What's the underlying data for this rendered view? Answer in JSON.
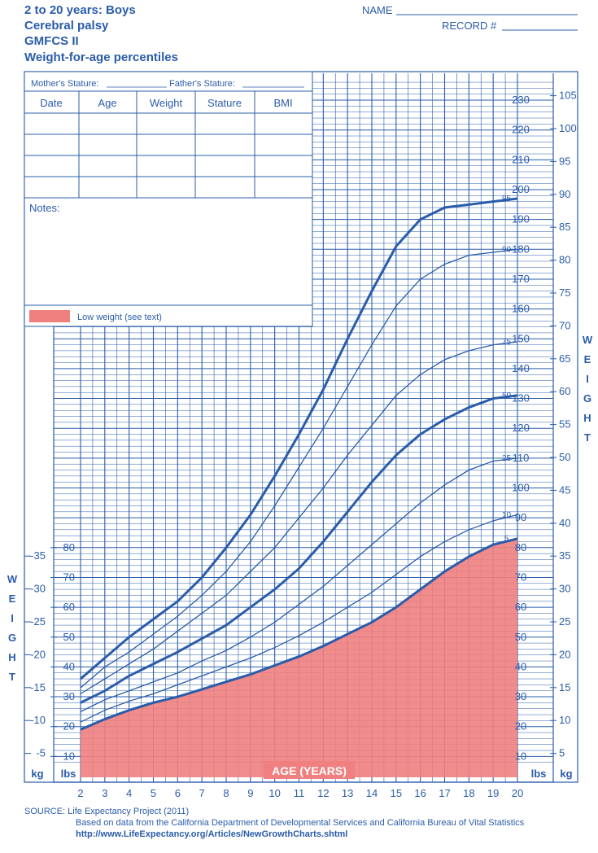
{
  "header": {
    "title_lines": [
      "2 to 20 years: Boys",
      "Cerebral palsy",
      "GMFCS II",
      "Weight-for-age percentiles"
    ],
    "name_label": "NAME",
    "record_label": "RECORD #"
  },
  "record_table": {
    "mother_stature": "Mother's Stature:",
    "father_stature": "Father's Stature:",
    "columns": [
      "Date",
      "Age",
      "Weight",
      "Stature",
      "BMI"
    ],
    "notes_label": "Notes:",
    "legend_label": "Low weight (see text)",
    "legend_color": "#f08080"
  },
  "axis_labels": {
    "weight_vertical": "WEIGHT",
    "kg": "kg",
    "lbs": "lbs",
    "age": "AGE (YEARS)"
  },
  "source": {
    "line1": "SOURCE:  Life Expectancy Project (2011)",
    "line2": "Based on data from the California Department of Developmental Services and California Bureau of Vital Statistics",
    "line3": "http://www.LifeExpectancy.org/Articles/NewGrowthCharts.shtml"
  },
  "chart_data": {
    "type": "line",
    "title": "Weight-for-age percentiles",
    "xlabel": "AGE (YEARS)",
    "ylabel": "WEIGHT",
    "xlim": [
      2,
      20
    ],
    "ylim_lbs": [
      5,
      235
    ],
    "x_ticks": [
      2,
      3,
      4,
      5,
      6,
      7,
      8,
      9,
      10,
      11,
      12,
      13,
      14,
      15,
      16,
      17,
      18,
      19,
      20
    ],
    "lbs_ticks_left": [
      10,
      20,
      30,
      40,
      50,
      60,
      70,
      80
    ],
    "kg_ticks_left": [
      5,
      10,
      15,
      20,
      25,
      30,
      35
    ],
    "lbs_ticks_right": [
      10,
      20,
      30,
      40,
      50,
      60,
      70,
      80,
      90,
      100,
      110,
      120,
      130,
      140,
      150,
      160,
      170,
      180,
      190,
      200,
      210,
      220,
      230
    ],
    "kg_ticks_right": [
      5,
      10,
      15,
      20,
      25,
      30,
      35,
      40,
      45,
      50,
      55,
      60,
      65,
      70,
      75,
      80,
      85,
      90,
      95,
      100,
      105
    ],
    "grid": true,
    "low_weight_fill": "#f08080",
    "x": [
      2,
      3,
      4,
      5,
      6,
      7,
      8,
      9,
      10,
      11,
      12,
      13,
      14,
      15,
      16,
      17,
      18,
      19,
      20
    ],
    "series": [
      {
        "name": "5",
        "values": [
          19,
          22.5,
          25.5,
          28,
          30,
          32.5,
          35,
          37.5,
          40.5,
          43.5,
          47,
          51,
          55,
          60,
          66,
          72,
          77,
          81,
          83
        ]
      },
      {
        "name": "10",
        "values": [
          21.5,
          25.5,
          28.5,
          31,
          34,
          37,
          40,
          43,
          46.5,
          50.5,
          55,
          60,
          65,
          71,
          77,
          82,
          86,
          89,
          91
        ]
      },
      {
        "name": "25",
        "values": [
          25,
          29,
          32,
          35,
          38,
          42,
          45.5,
          50,
          55,
          61,
          67,
          74,
          81,
          88,
          95,
          101,
          106,
          109,
          110
        ]
      },
      {
        "name": "50",
        "values": [
          28,
          32,
          37,
          41,
          45,
          49.5,
          54,
          60,
          66,
          73,
          82,
          92,
          102,
          111,
          118,
          123,
          127,
          130,
          131
        ]
      },
      {
        "name": "75",
        "values": [
          31,
          36,
          41,
          46,
          52,
          58,
          64,
          72,
          80,
          90,
          100,
          111,
          121,
          131,
          138,
          143,
          146,
          148,
          149
        ]
      },
      {
        "name": "90",
        "values": [
          33,
          40,
          45,
          51,
          57,
          64,
          72,
          82,
          94,
          107,
          120,
          134,
          148,
          161,
          170,
          175,
          178,
          179,
          180
        ]
      },
      {
        "name": "95",
        "values": [
          36,
          43,
          50,
          56,
          62,
          70,
          80,
          91,
          104,
          118,
          133,
          150,
          166,
          181,
          190,
          194,
          195,
          196,
          197
        ]
      }
    ]
  }
}
